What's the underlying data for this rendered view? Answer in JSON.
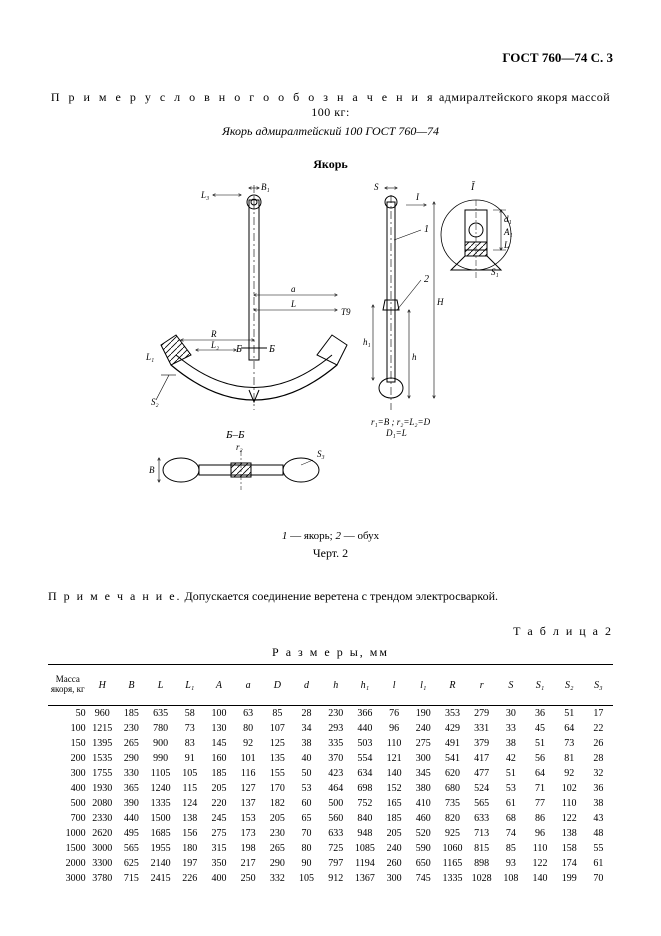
{
  "header": "ГОСТ 760—74 С. 3",
  "intro_spaced": "П р и м е р   у с л о в н о г о   о б о з н а ч е н и я",
  "intro_rest": "  адмиралтейского якоря массой 100 кг:",
  "subintro": "Якорь адмиралтейский 100 ГОСТ 760—74",
  "fig_title": "Якорь",
  "fig_caption_prefix": "1",
  "fig_caption_a": " — якорь; ",
  "fig_caption_b": "2",
  "fig_caption_c": " — обух",
  "fig_num": "Черт. 2",
  "note_spaced": "П р и м е ч а н и е.",
  "note_rest": " Допускается соединение веретена с трендом электросваркой.",
  "table_label": "Т а б л и ц а  2",
  "sizes_label": "Р а з м е р ы, мм",
  "diagram": {
    "labels": [
      "L₃",
      "B₁",
      "S",
      "I",
      "Ī",
      "A₁",
      "d₁",
      "L",
      "S₁",
      "a",
      "L",
      "T9",
      "1",
      "2",
      "H",
      "R",
      "L₂",
      "Б",
      "Б",
      "L₁",
      "h",
      "h₁",
      "S₂",
      "Б–Б",
      "r₂",
      "B",
      "S₃",
      "r₁=B ; r₂=L₂=D",
      "D₁=L"
    ]
  },
  "table": {
    "columns": [
      "Масса якоря, кг",
      "H",
      "B",
      "L",
      "L₁",
      "A",
      "a",
      "D",
      "d",
      "h",
      "h₁",
      "l",
      "l₁",
      "R",
      "r",
      "S",
      "S₁",
      "S₂",
      "S₃"
    ],
    "rows": [
      [
        "50",
        "960",
        "185",
        "635",
        "58",
        "100",
        "63",
        "85",
        "28",
        "230",
        "366",
        "76",
        "190",
        "353",
        "279",
        "30",
        "36",
        "51",
        "17"
      ],
      [
        "100",
        "1215",
        "230",
        "780",
        "73",
        "130",
        "80",
        "107",
        "34",
        "293",
        "440",
        "96",
        "240",
        "429",
        "331",
        "33",
        "45",
        "64",
        "22"
      ],
      [
        "150",
        "1395",
        "265",
        "900",
        "83",
        "145",
        "92",
        "125",
        "38",
        "335",
        "503",
        "110",
        "275",
        "491",
        "379",
        "38",
        "51",
        "73",
        "26"
      ],
      [
        "200",
        "1535",
        "290",
        "990",
        "91",
        "160",
        "101",
        "135",
        "40",
        "370",
        "554",
        "121",
        "300",
        "541",
        "417",
        "42",
        "56",
        "81",
        "28"
      ],
      [
        "300",
        "1755",
        "330",
        "1105",
        "105",
        "185",
        "116",
        "155",
        "50",
        "423",
        "634",
        "140",
        "345",
        "620",
        "477",
        "51",
        "64",
        "92",
        "32"
      ],
      [
        "400",
        "1930",
        "365",
        "1240",
        "115",
        "205",
        "127",
        "170",
        "53",
        "464",
        "698",
        "152",
        "380",
        "680",
        "524",
        "53",
        "71",
        "102",
        "36"
      ],
      [
        "500",
        "2080",
        "390",
        "1335",
        "124",
        "220",
        "137",
        "182",
        "60",
        "500",
        "752",
        "165",
        "410",
        "735",
        "565",
        "61",
        "77",
        "110",
        "38"
      ],
      [
        "700",
        "2330",
        "440",
        "1500",
        "138",
        "245",
        "153",
        "205",
        "65",
        "560",
        "840",
        "185",
        "460",
        "820",
        "633",
        "68",
        "86",
        "122",
        "43"
      ],
      [
        "1000",
        "2620",
        "495",
        "1685",
        "156",
        "275",
        "173",
        "230",
        "70",
        "633",
        "948",
        "205",
        "520",
        "925",
        "713",
        "74",
        "96",
        "138",
        "48"
      ],
      [
        "1500",
        "3000",
        "565",
        "1955",
        "180",
        "315",
        "198",
        "265",
        "80",
        "725",
        "1085",
        "240",
        "590",
        "1060",
        "815",
        "85",
        "110",
        "158",
        "55"
      ],
      [
        "2000",
        "3300",
        "625",
        "2140",
        "197",
        "350",
        "217",
        "290",
        "90",
        "797",
        "1194",
        "260",
        "650",
        "1165",
        "898",
        "93",
        "122",
        "174",
        "61"
      ],
      [
        "3000",
        "3780",
        "715",
        "2415",
        "226",
        "400",
        "250",
        "332",
        "105",
        "912",
        "1367",
        "300",
        "745",
        "1335",
        "1028",
        "108",
        "140",
        "199",
        "70"
      ]
    ]
  }
}
